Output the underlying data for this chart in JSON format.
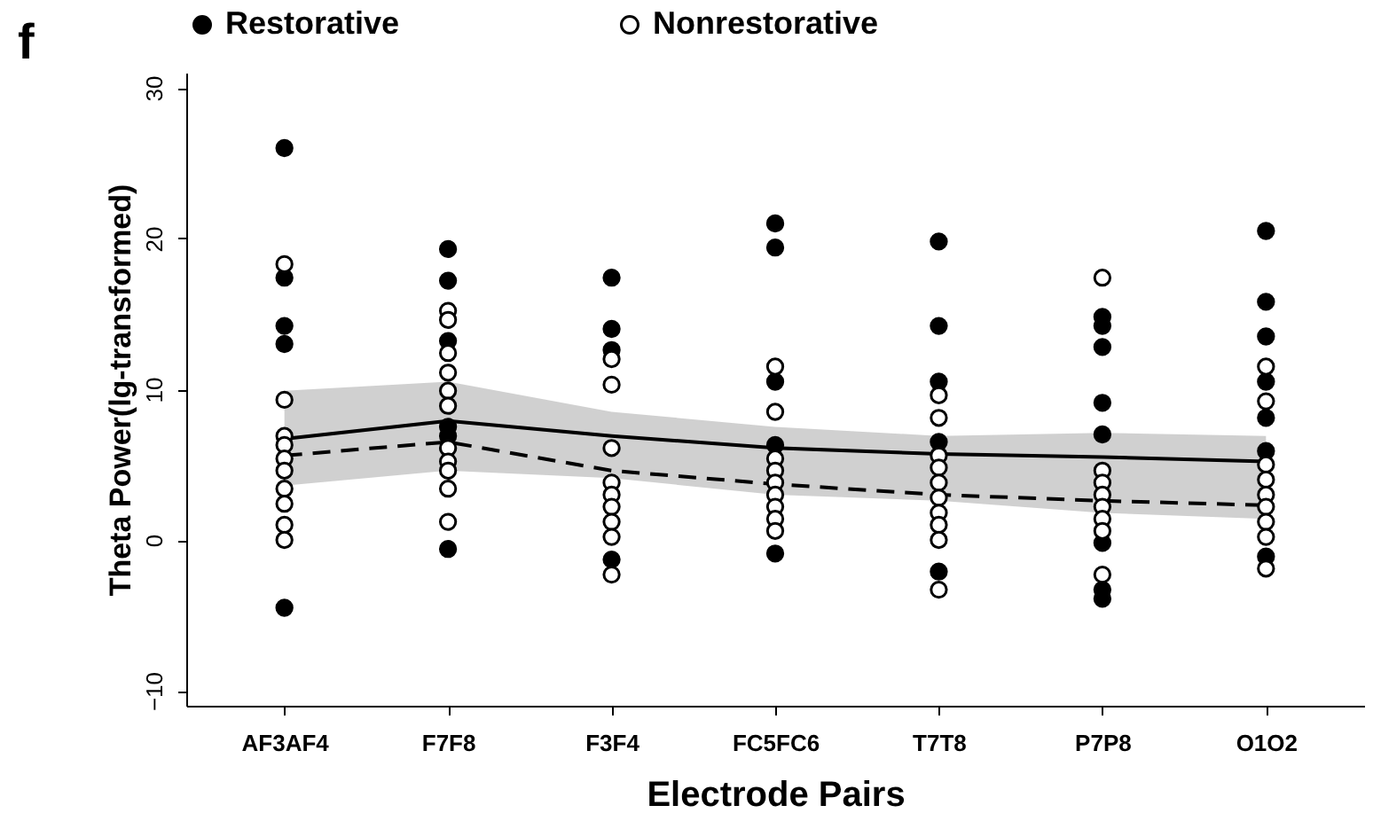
{
  "chart_data": {
    "type": "scatter",
    "xlabel": "Electrode Pairs",
    "ylabel": "Theta Power(lg-transformed)",
    "annotations": [
      "f"
    ],
    "categories": [
      "AF3AF4",
      "F7F8",
      "F3F4",
      "FC5FC6",
      "T7T8",
      "P7P8",
      "O1O2"
    ],
    "ylim": [
      -11,
      31
    ],
    "yticks": [
      -10,
      0,
      10,
      20,
      30
    ],
    "grid": false,
    "legend": "top",
    "series": [
      {
        "name": "Restorative",
        "marker": "circle",
        "color": "#000000",
        "x": [
          "AF3AF4",
          "AF3AF4",
          "AF3AF4",
          "AF3AF4",
          "AF3AF4",
          "F7F8",
          "F7F8",
          "F7F8",
          "F7F8",
          "F7F8",
          "F7F8",
          "F3F4",
          "F3F4",
          "F3F4",
          "F3F4",
          "FC5FC6",
          "FC5FC6",
          "FC5FC6",
          "FC5FC6",
          "FC5FC6",
          "T7T8",
          "T7T8",
          "T7T8",
          "T7T8",
          "T7T8",
          "P7P8",
          "P7P8",
          "P7P8",
          "P7P8",
          "P7P8",
          "P7P8",
          "P7P8",
          "P7P8",
          "O1O2",
          "O1O2",
          "O1O2",
          "O1O2",
          "O1O2",
          "O1O2",
          "O1O2"
        ],
        "values": [
          26.0,
          17.4,
          14.2,
          13.0,
          -4.5,
          19.3,
          17.2,
          13.2,
          7.5,
          6.9,
          -0.6,
          17.4,
          14.0,
          12.6,
          -1.3,
          21.0,
          19.4,
          10.5,
          6.3,
          -0.9,
          19.8,
          14.2,
          10.5,
          6.5,
          -2.1,
          14.8,
          14.2,
          12.8,
          9.1,
          7.0,
          -0.2,
          -3.3,
          -3.9,
          20.5,
          15.8,
          13.5,
          10.5,
          8.1,
          5.9,
          -1.1
        ]
      },
      {
        "name": "Nonrestorative",
        "marker": "circle",
        "color": "#ffffff",
        "x": [
          "AF3AF4",
          "AF3AF4",
          "AF3AF4",
          "AF3AF4",
          "AF3AF4",
          "AF3AF4",
          "AF3AF4",
          "AF3AF4",
          "AF3AF4",
          "AF3AF4",
          "F7F8",
          "F7F8",
          "F7F8",
          "F7F8",
          "F7F8",
          "F7F8",
          "F7F8",
          "F7F8",
          "F7F8",
          "F7F8",
          "F7F8",
          "F3F4",
          "F3F4",
          "F3F4",
          "F3F4",
          "F3F4",
          "F3F4",
          "F3F4",
          "F3F4",
          "F3F4",
          "FC5FC6",
          "FC5FC6",
          "FC5FC6",
          "FC5FC6",
          "FC5FC6",
          "FC5FC6",
          "FC5FC6",
          "FC5FC6",
          "FC5FC6",
          "T7T8",
          "T7T8",
          "T7T8",
          "T7T8",
          "T7T8",
          "T7T8",
          "T7T8",
          "T7T8",
          "T7T8",
          "T7T8",
          "P7P8",
          "P7P8",
          "P7P8",
          "P7P8",
          "P7P8",
          "P7P8",
          "P7P8",
          "P7P8",
          "O1O2",
          "O1O2",
          "O1O2",
          "O1O2",
          "O1O2",
          "O1O2",
          "O1O2",
          "O1O2",
          "O1O2"
        ],
        "values": [
          18.3,
          9.3,
          6.9,
          6.3,
          5.4,
          4.6,
          3.4,
          2.4,
          1.0,
          0.0,
          15.2,
          14.6,
          12.4,
          11.1,
          9.9,
          8.9,
          6.1,
          5.2,
          4.6,
          3.4,
          1.2,
          12.0,
          10.3,
          6.1,
          3.8,
          3.0,
          2.2,
          1.2,
          0.2,
          -2.3,
          11.5,
          8.5,
          5.4,
          4.6,
          3.8,
          3.0,
          2.2,
          1.4,
          0.6,
          9.6,
          8.1,
          5.6,
          4.8,
          3.8,
          2.8,
          1.8,
          1.0,
          0.0,
          -3.3,
          17.4,
          4.6,
          3.8,
          3.0,
          2.2,
          1.4,
          0.6,
          -2.3,
          11.5,
          9.2,
          5.0,
          4.0,
          3.0,
          2.2,
          1.2,
          0.2,
          -1.9
        ]
      },
      {
        "type": "line",
        "marker": "none",
        "color": "#000000",
        "line_style": "solid",
        "values": [
          6.7,
          7.9,
          6.9,
          6.1,
          5.7,
          5.5,
          5.2
        ],
        "lower": [
          3.6,
          4.6,
          4.1,
          3.0,
          2.6,
          1.8,
          1.4
        ],
        "upper": [
          9.9,
          10.5,
          8.5,
          7.5,
          6.9,
          7.1,
          6.9
        ]
      },
      {
        "type": "line",
        "marker": "none",
        "color": "#000000",
        "line_style": "dashed",
        "values": [
          5.6,
          6.5,
          4.6,
          3.7,
          3.0,
          2.6,
          2.3
        ]
      }
    ]
  }
}
